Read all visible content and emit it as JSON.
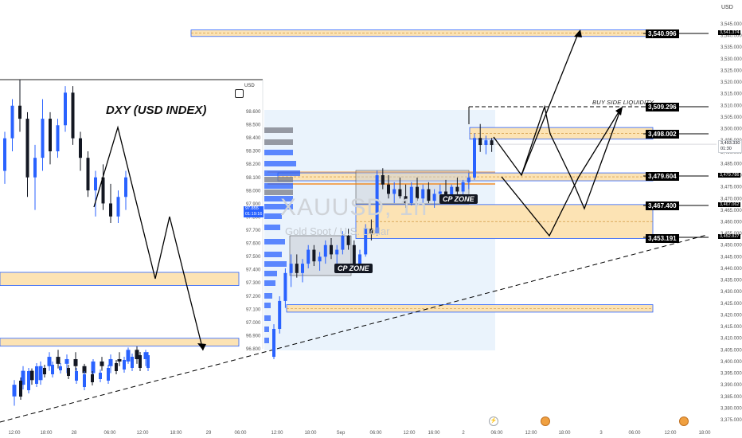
{
  "colors": {
    "bull": "#2962ff",
    "bear": "#131722",
    "zone_fill": "#fce3b4",
    "zone_edge": "#2962ff",
    "cp_fill": "#c9cfd6",
    "vp_blue": "#2962ff",
    "vp_grey": "#787b86",
    "session_bg": "#eaf3fc",
    "orange_line": "#f57c00",
    "label_bg": "#000000",
    "label_fg": "#ffffff"
  },
  "main": {
    "currency": "USD",
    "watermark_symbol": "XAUUSD, 1h",
    "watermark_name": "Gold Spot / U.S. Dollar",
    "price_ticks": [
      "3,545.000",
      "3,540.000",
      "3,535.000",
      "3,530.000",
      "3,525.000",
      "3,520.000",
      "3,515.000",
      "3,510.000",
      "3,505.000",
      "3,500.000",
      "3,495.000",
      "3,490.000",
      "3,485.000",
      "3,480.000",
      "3,475.000",
      "3,470.000",
      "3,465.000",
      "3,460.000",
      "3,455.000",
      "3,450.000",
      "3,445.000",
      "3,440.000",
      "3,435.000",
      "3,430.000",
      "3,425.000",
      "3,420.000",
      "3,415.000",
      "3,410.000",
      "3,405.000",
      "3,400.000",
      "3,395.000",
      "3,390.000",
      "3,385.000",
      "3,380.000",
      "3,375.000"
    ],
    "time_ticks": [
      "12:00",
      "18:00",
      "28",
      "06:00",
      "12:00",
      "18:00",
      "29",
      "06:00",
      "12:00",
      "18:00",
      "Sep",
      "06:00",
      "12:00",
      "16:00",
      "2",
      "06:00",
      "12:00",
      "18:00",
      "3",
      "06:00",
      "12:00",
      "18:00"
    ],
    "current_price": "3,493.330",
    "countdown": "01:30",
    "right_labels": [
      "3,541.374",
      "3,479.786",
      "3,467.062",
      "3,452.827"
    ]
  },
  "dxy": {
    "title": "DXY (USD INDEX)",
    "currency": "USD",
    "price_ticks": [
      "98.600",
      "98.500",
      "98.400",
      "98.300",
      "98.200",
      "98.100",
      "98.000",
      "97.900",
      "97.800",
      "97.700",
      "97.600",
      "97.500",
      "97.400",
      "97.300",
      "97.200",
      "97.100",
      "97.000",
      "96.900",
      "96.800"
    ],
    "current_price": "97.855",
    "countdown": "01:19:16"
  },
  "annotations": {
    "buy_side_liquidity": "BUY SIDE LIQUIDITY",
    "cp_zone_1": "CP ZONE",
    "cp_zone_2": "CP ZONE",
    "levels": [
      "3,540.996",
      "3,509.296",
      "3,498.002",
      "3,479.604",
      "3,467.400",
      "3,453.191"
    ]
  },
  "chart_data": [
    {
      "type": "candlestick",
      "title": "XAUUSD, 1h",
      "subtitle": "Gold Spot / U.S. Dollar",
      "ylabel": "USD",
      "ylim": [
        3372,
        3548
      ],
      "x_ticks": [
        "12:00",
        "18:00",
        "28",
        "06:00",
        "12:00",
        "18:00",
        "29",
        "06:00",
        "12:00",
        "18:00",
        "Sep",
        "06:00",
        "12:00",
        "16:00",
        "2",
        "06:00",
        "12:00",
        "18:00",
        "3",
        "06:00",
        "12:00",
        "18:00"
      ],
      "current_price": 3493.33,
      "ohlc_left": [
        [
          3385,
          3392,
          3381,
          3390
        ],
        [
          3390,
          3398,
          3388,
          3396
        ],
        [
          3396,
          3397,
          3390,
          3392
        ],
        [
          3392,
          3400,
          3390,
          3398
        ],
        [
          3398,
          3404,
          3396,
          3402
        ],
        [
          3402,
          3405,
          3397,
          3399
        ],
        [
          3399,
          3403,
          3395,
          3401
        ],
        [
          3401,
          3404,
          3396,
          3398
        ],
        [
          3398,
          3399,
          3392,
          3395
        ],
        [
          3395,
          3401,
          3394,
          3400
        ],
        [
          3400,
          3402,
          3396,
          3398
        ],
        [
          3398,
          3403,
          3395,
          3401
        ],
        [
          3401,
          3404,
          3398,
          3400
        ],
        [
          3400,
          3406,
          3399,
          3405
        ],
        [
          3405,
          3407,
          3399,
          3401
        ],
        [
          3401,
          3405,
          3398,
          3404
        ]
      ],
      "ohlc_main": [
        [
          3402,
          3416,
          3401,
          3414
        ],
        [
          3414,
          3428,
          3412,
          3426
        ],
        [
          3426,
          3440,
          3423,
          3438
        ],
        [
          3438,
          3446,
          3432,
          3442
        ],
        [
          3442,
          3446,
          3436,
          3438
        ],
        [
          3438,
          3444,
          3434,
          3442
        ],
        [
          3442,
          3450,
          3440,
          3448
        ],
        [
          3448,
          3450,
          3441,
          3443
        ],
        [
          3443,
          3447,
          3439,
          3445
        ],
        [
          3445,
          3452,
          3442,
          3450
        ],
        [
          3450,
          3453,
          3444,
          3446
        ],
        [
          3446,
          3450,
          3441,
          3448
        ],
        [
          3448,
          3456,
          3446,
          3454
        ],
        [
          3454,
          3457,
          3448,
          3450
        ],
        [
          3450,
          3452,
          3440,
          3442
        ],
        [
          3442,
          3448,
          3440,
          3446
        ],
        [
          3446,
          3459,
          3445,
          3457
        ],
        [
          3457,
          3461,
          3452,
          3455
        ],
        [
          3455,
          3482,
          3454,
          3480
        ],
        [
          3480,
          3483,
          3474,
          3476
        ],
        [
          3476,
          3480,
          3470,
          3472
        ],
        [
          3472,
          3477,
          3468,
          3474
        ],
        [
          3474,
          3479,
          3470,
          3471
        ],
        [
          3471,
          3476,
          3466,
          3468
        ],
        [
          3468,
          3477,
          3467,
          3475
        ],
        [
          3475,
          3479,
          3469,
          3470
        ],
        [
          3470,
          3476,
          3468,
          3474
        ],
        [
          3474,
          3477,
          3468,
          3469
        ],
        [
          3469,
          3474,
          3466,
          3472
        ],
        [
          3472,
          3476,
          3469,
          3473
        ],
        [
          3473,
          3478,
          3468,
          3470
        ],
        [
          3470,
          3476,
          3469,
          3475
        ],
        [
          3475,
          3479,
          3471,
          3473
        ],
        [
          3473,
          3478,
          3470,
          3477
        ],
        [
          3477,
          3481,
          3474,
          3479
        ],
        [
          3479,
          3498,
          3478,
          3496
        ],
        [
          3496,
          3502,
          3490,
          3493
        ],
        [
          3493,
          3497,
          3489,
          3495
        ],
        [
          3495,
          3496,
          3490,
          3493
        ]
      ],
      "zones": [
        [
          3539.6,
          3542.4
        ],
        [
          3495.5,
          3500.5
        ],
        [
          3477.6,
          3481.0
        ],
        [
          3452.8,
          3467.4
        ],
        [
          3421.2,
          3424.4
        ]
      ],
      "levels": [
        3540.996,
        3509.296,
        3498.002,
        3479.604,
        3467.4,
        3453.191
      ]
    },
    {
      "type": "candlestick",
      "title": "DXY (USD INDEX)",
      "ylabel": "USD",
      "ylim": [
        96.78,
        98.63
      ],
      "current_price": 97.855,
      "ohlc": [
        [
          96.86,
          96.95,
          96.82,
          96.92
        ],
        [
          96.92,
          97.05,
          96.9,
          97.02
        ],
        [
          97.02,
          97.18,
          97.0,
          97.15
        ],
        [
          97.15,
          97.3,
          97.12,
          97.28
        ],
        [
          97.28,
          97.45,
          97.25,
          97.42
        ],
        [
          97.42,
          97.55,
          97.38,
          97.5
        ],
        [
          97.5,
          97.62,
          97.45,
          97.58
        ],
        [
          97.58,
          97.7,
          97.5,
          97.55
        ],
        [
          97.55,
          97.75,
          97.52,
          97.72
        ],
        [
          97.72,
          97.8,
          97.65,
          97.68
        ],
        [
          97.68,
          97.82,
          97.64,
          97.8
        ],
        [
          97.8,
          97.85,
          97.7,
          97.74
        ],
        [
          97.74,
          97.86,
          97.72,
          97.84
        ]
      ],
      "zones": [
        [
          97.28,
          97.38
        ],
        [
          96.82,
          96.88
        ]
      ]
    }
  ]
}
